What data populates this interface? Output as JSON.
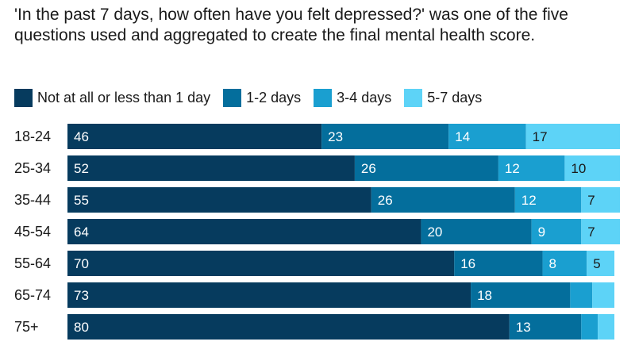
{
  "title": "'In the past 7 days, how often have you felt depressed?' was one of the five questions used and aggregated to create the final mental health score.",
  "chart_data": {
    "type": "bar",
    "orientation": "horizontal",
    "stacked": true,
    "categories": [
      "18-24",
      "25-34",
      "35-44",
      "45-54",
      "55-64",
      "65-74",
      "75+"
    ],
    "series": [
      {
        "name": "Not at all or less than 1 day",
        "color": "#063b5e",
        "values": [
          46,
          52,
          55,
          64,
          70,
          73,
          80
        ],
        "labels": [
          "46",
          "52",
          "55",
          "64",
          "70",
          "73",
          "80"
        ]
      },
      {
        "name": "1-2 days",
        "color": "#046e9c",
        "values": [
          23,
          26,
          26,
          20,
          16,
          18,
          13
        ],
        "labels": [
          "23",
          "26",
          "26",
          "20",
          "16",
          "18",
          "13"
        ]
      },
      {
        "name": "3-4 days",
        "color": "#1a9fd0",
        "values": [
          14,
          12,
          12,
          9,
          8,
          4,
          3
        ],
        "labels": [
          "14",
          "12",
          "12",
          "9",
          "8",
          "",
          ""
        ]
      },
      {
        "name": "5-7 days",
        "color": "#5dd3f7",
        "values": [
          17,
          10,
          7,
          7,
          5,
          4,
          3
        ],
        "labels": [
          "17",
          "10",
          "7",
          "7",
          "5",
          "",
          ""
        ]
      }
    ],
    "xlim": [
      0,
      100
    ],
    "grid": false,
    "legend_position": "top-left"
  }
}
